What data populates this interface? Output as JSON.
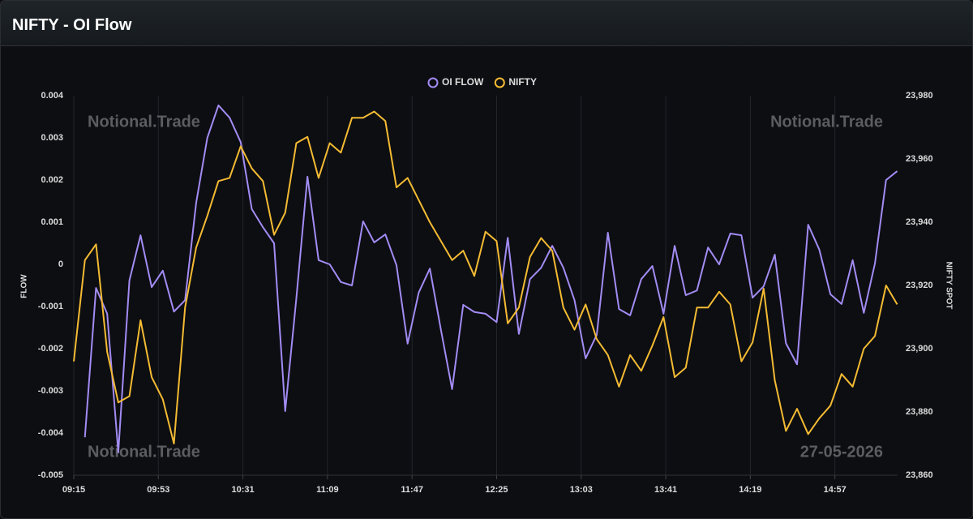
{
  "header": {
    "title": "NIFTY - OI Flow"
  },
  "chart_data": {
    "type": "line",
    "x": [
      "09:15",
      "09:20",
      "09:25",
      "09:30",
      "09:35",
      "09:40",
      "09:45",
      "09:50",
      "09:55",
      "10:00",
      "10:05",
      "10:10",
      "10:15",
      "10:20",
      "10:25",
      "10:30",
      "10:35",
      "10:40",
      "10:45",
      "10:50",
      "10:55",
      "11:00",
      "11:05",
      "11:10",
      "11:15",
      "11:20",
      "11:25",
      "11:30",
      "11:35",
      "11:40",
      "11:45",
      "11:50",
      "11:55",
      "12:00",
      "12:05",
      "12:10",
      "12:15",
      "12:20",
      "12:25",
      "12:30",
      "12:35",
      "12:40",
      "12:45",
      "12:50",
      "12:55",
      "13:00",
      "13:05",
      "13:10",
      "13:15",
      "13:20",
      "13:25",
      "13:30",
      "13:35",
      "13:40",
      "13:45",
      "13:50",
      "13:55",
      "14:00",
      "14:05",
      "14:10",
      "14:15",
      "14:20",
      "14:25",
      "14:30",
      "14:35",
      "14:40",
      "14:45",
      "14:50",
      "14:55",
      "15:00",
      "15:05",
      "15:10",
      "15:15",
      "15:20",
      "15:25"
    ],
    "series": [
      {
        "name": "OI FLOW",
        "color": "#a38cf4",
        "axis": "y",
        "values": [
          null,
          -0.0041,
          -0.00056,
          -0.00117,
          -0.00446,
          -0.00038,
          0.00069,
          -0.00054,
          -0.00015,
          -0.00112,
          -0.00085,
          0.00146,
          0.003,
          0.00377,
          0.00348,
          0.0029,
          0.00131,
          0.00088,
          0.0005,
          -0.00348,
          -0.00081,
          0.00208,
          0.0001,
          0,
          -0.00042,
          -0.0005,
          0.00102,
          0.00052,
          0.00071,
          -2e-05,
          -0.00188,
          -0.00067,
          -0.0001,
          -0.00156,
          -0.00296,
          -0.00096,
          -0.00113,
          -0.00117,
          -0.00137,
          0.00063,
          -0.00165,
          -0.00035,
          -8e-05,
          0.00044,
          -8e-05,
          -0.00085,
          -0.00223,
          -0.00167,
          0.00075,
          -0.00106,
          -0.00121,
          -0.00035,
          -4e-05,
          -0.00117,
          0.00044,
          -0.00073,
          -0.00062,
          0.0004,
          0,
          0.00073,
          0.00069,
          -0.00079,
          -0.00052,
          0.00023,
          -0.00187,
          -0.00237,
          0.00094,
          0.00035,
          -0.00071,
          -0.00094,
          0.0001,
          -0.00115,
          2e-05,
          0.002,
          0.00221
        ]
      },
      {
        "name": "NIFTY",
        "color": "#f4bb33",
        "axis": "y2",
        "values": [
          23896,
          23928,
          23933,
          23899,
          23883,
          23885,
          23909,
          23891,
          23884,
          23870,
          23913,
          23932,
          23942,
          23953,
          23954,
          23964,
          23957,
          23953,
          23936,
          23943,
          23965,
          23967,
          23954,
          23965,
          23962,
          23973,
          23973,
          23975,
          23972,
          23951,
          23954,
          23947,
          23940,
          23934,
          23928,
          23931,
          23923,
          23937,
          23934,
          23908,
          23913,
          23929,
          23935,
          23931,
          23913,
          23906,
          23914,
          23903,
          23898,
          23888,
          23898,
          23893,
          23901,
          23910,
          23891,
          23894,
          23913,
          23913,
          23918,
          23914,
          23896,
          23902,
          23919,
          23890,
          23874,
          23881,
          23873,
          23878,
          23882,
          23892,
          23888,
          23900,
          23904,
          23920,
          23914
        ]
      }
    ],
    "xlim": [
      "09:15",
      "15:25"
    ],
    "xticks": [
      "09:15",
      "09:53",
      "10:31",
      "11:09",
      "11:47",
      "12:25",
      "13:03",
      "13:41",
      "14:19",
      "14:57"
    ],
    "ylim": [
      -0.005,
      0.004
    ],
    "yticks": [
      0.004,
      0.003,
      0.002,
      0.001,
      0,
      -0.001,
      -0.002,
      -0.003,
      -0.004,
      -0.005
    ],
    "y2lim": [
      23860,
      23980
    ],
    "y2ticks": [
      {
        "value": 23980,
        "label": "23,980"
      },
      {
        "value": 23960,
        "label": "23,960"
      },
      {
        "value": 23940,
        "label": "23,940"
      },
      {
        "value": 23920,
        "label": "23,920"
      },
      {
        "value": 23900,
        "label": "23,900"
      },
      {
        "value": 23880,
        "label": "23,880"
      },
      {
        "value": 23860,
        "label": "23,860"
      }
    ],
    "ylabel": "FLOW",
    "y2label": "NIFTY SPOT",
    "xgrid": true,
    "legend": "top",
    "watermarks": [
      "Notional.Trade",
      "Notional.Trade",
      "Notional.Trade",
      "27-05-2026"
    ]
  }
}
